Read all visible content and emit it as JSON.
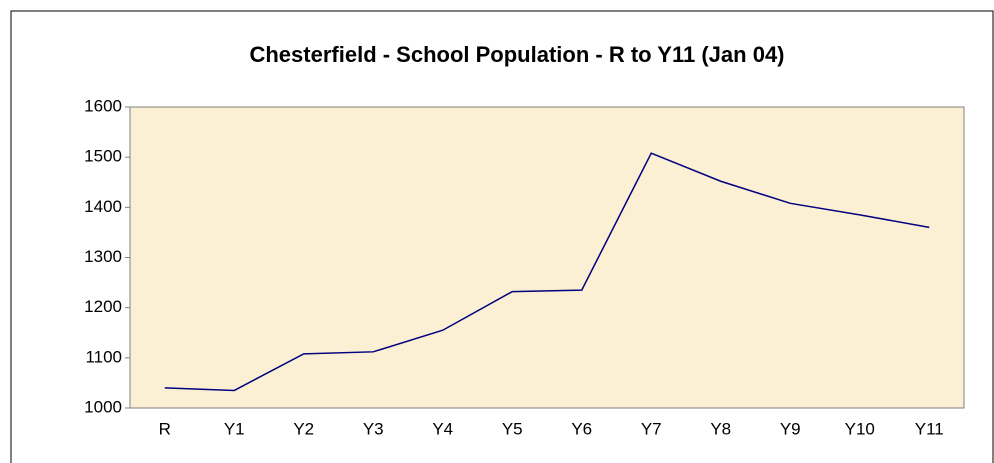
{
  "chart_data": {
    "type": "line",
    "title": "Chesterfield - School Population - R to Y11 (Jan 04)",
    "categories": [
      "R",
      "Y1",
      "Y2",
      "Y3",
      "Y4",
      "Y5",
      "Y6",
      "Y7",
      "Y8",
      "Y9",
      "Y10",
      "Y11"
    ],
    "values": [
      1040,
      1035,
      1108,
      1112,
      1155,
      1232,
      1235,
      1508,
      1452,
      1408,
      1385,
      1360
    ],
    "color": "#000080",
    "ylim": [
      1000,
      1600
    ],
    "yticks": [
      1000,
      1100,
      1200,
      1300,
      1400,
      1500,
      1600
    ],
    "grid": false
  }
}
